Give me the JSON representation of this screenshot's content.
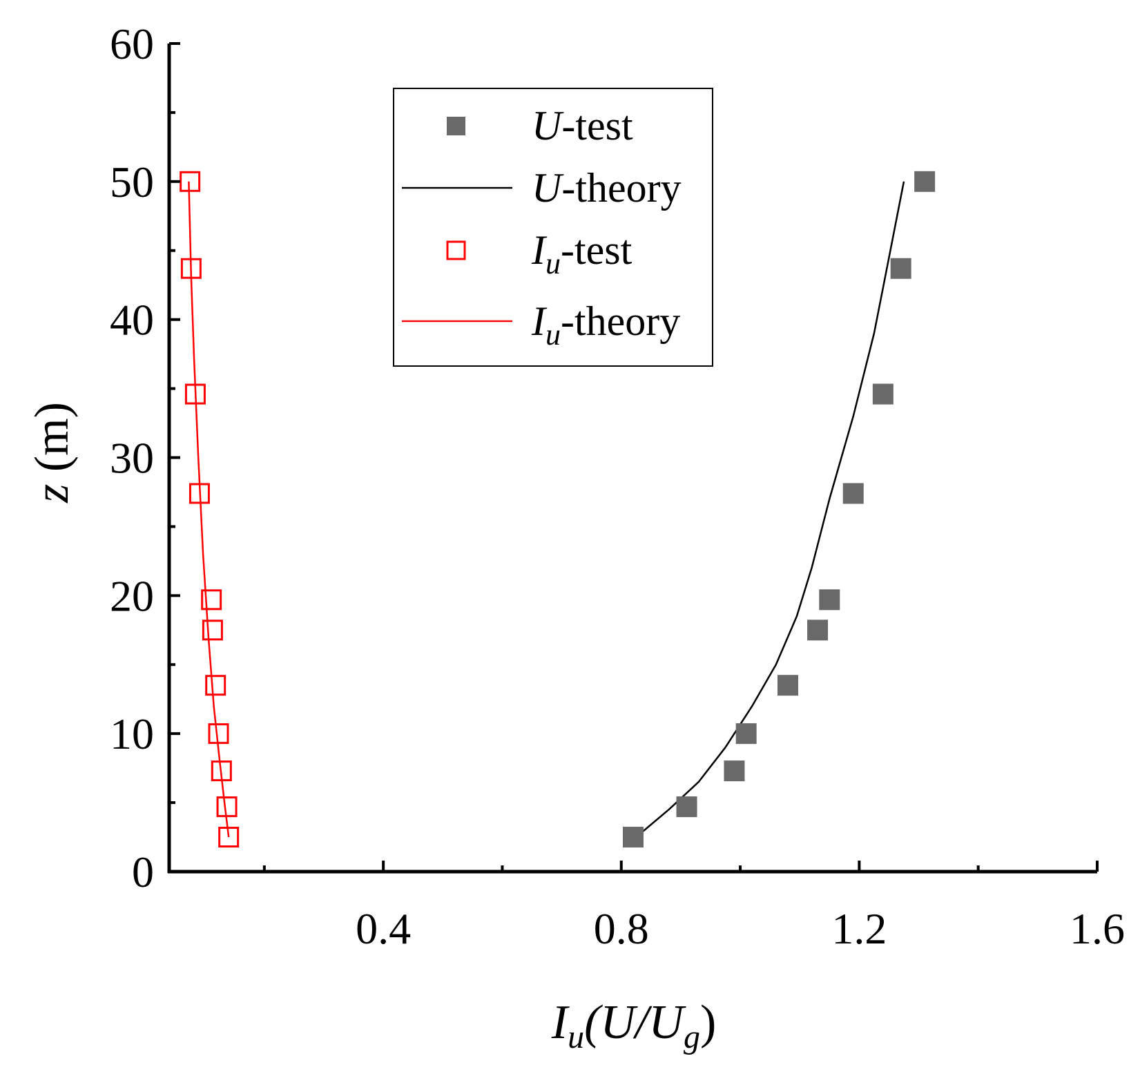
{
  "chart_data": {
    "type": "scatter",
    "title": "",
    "xlabel": {
      "main": "I",
      "sub": "u",
      "rest": "(U/U",
      "sub2": "g",
      "end": ")"
    },
    "ylabel": {
      "italic": "z",
      "rest": " (m)"
    },
    "xlim": [
      0.04,
      1.6
    ],
    "ylim": [
      0,
      60
    ],
    "xticks": [
      {
        "value": 0.4,
        "label": "0.4"
      },
      {
        "value": 0.8,
        "label": "0.8"
      },
      {
        "value": 1.2,
        "label": "1.2"
      },
      {
        "value": 1.6,
        "label": "1.6"
      }
    ],
    "xminor": [
      0.2,
      0.6,
      1.0,
      1.4
    ],
    "yticks": [
      {
        "value": 0,
        "label": "0"
      },
      {
        "value": 10,
        "label": "10"
      },
      {
        "value": 20,
        "label": "20"
      },
      {
        "value": 30,
        "label": "30"
      },
      {
        "value": 40,
        "label": "40"
      },
      {
        "value": 50,
        "label": "50"
      },
      {
        "value": 60,
        "label": "60"
      }
    ],
    "yminor": [
      5,
      15,
      25,
      35,
      45,
      55
    ],
    "grid": false,
    "legend_position": "top-center",
    "series": [
      {
        "name": "U-test",
        "name_main": "U",
        "name_sub": "",
        "name_rest": "-test",
        "kind": "scatter",
        "marker": "filled-square",
        "color": "#696969",
        "points": [
          [
            0.82,
            2.5
          ],
          [
            0.91,
            4.7
          ],
          [
            0.99,
            7.3
          ],
          [
            1.01,
            10.0
          ],
          [
            1.08,
            13.5
          ],
          [
            1.13,
            17.5
          ],
          [
            1.15,
            19.7
          ],
          [
            1.19,
            27.4
          ],
          [
            1.24,
            34.6
          ],
          [
            1.27,
            43.7
          ],
          [
            1.31,
            50.0
          ]
        ]
      },
      {
        "name": "U-theory",
        "name_main": "U",
        "name_sub": "",
        "name_rest": "-theory",
        "kind": "line",
        "color": "#000000",
        "points": [
          [
            0.825,
            2.5
          ],
          [
            0.88,
            4.5
          ],
          [
            0.93,
            6.5
          ],
          [
            0.975,
            9.0
          ],
          [
            1.02,
            12.0
          ],
          [
            1.06,
            15.0
          ],
          [
            1.095,
            18.5
          ],
          [
            1.12,
            22.0
          ],
          [
            1.15,
            27.0
          ],
          [
            1.19,
            33.0
          ],
          [
            1.225,
            39.0
          ],
          [
            1.25,
            44.5
          ],
          [
            1.275,
            50.0
          ]
        ]
      },
      {
        "name": "Iu-test",
        "name_main": "I",
        "name_sub": "u",
        "name_rest": "-test",
        "kind": "scatter",
        "marker": "open-square",
        "color": "#ff0000",
        "points": [
          [
            0.14,
            2.5
          ],
          [
            0.137,
            4.7
          ],
          [
            0.128,
            7.3
          ],
          [
            0.123,
            10.0
          ],
          [
            0.118,
            13.5
          ],
          [
            0.113,
            17.5
          ],
          [
            0.111,
            19.7
          ],
          [
            0.091,
            27.4
          ],
          [
            0.084,
            34.6
          ],
          [
            0.077,
            43.7
          ],
          [
            0.075,
            50.0
          ]
        ]
      },
      {
        "name": "Iu-theory",
        "name_main": "I",
        "name_sub": "u",
        "name_rest": "-theory",
        "kind": "line",
        "color": "#ff0000",
        "points": [
          [
            0.14,
            2.5
          ],
          [
            0.133,
            5.0
          ],
          [
            0.125,
            8.0
          ],
          [
            0.115,
            12.0
          ],
          [
            0.106,
            17.0
          ],
          [
            0.097,
            23.0
          ],
          [
            0.089,
            30.0
          ],
          [
            0.082,
            37.0
          ],
          [
            0.077,
            43.0
          ],
          [
            0.073,
            50.0
          ]
        ]
      }
    ]
  }
}
